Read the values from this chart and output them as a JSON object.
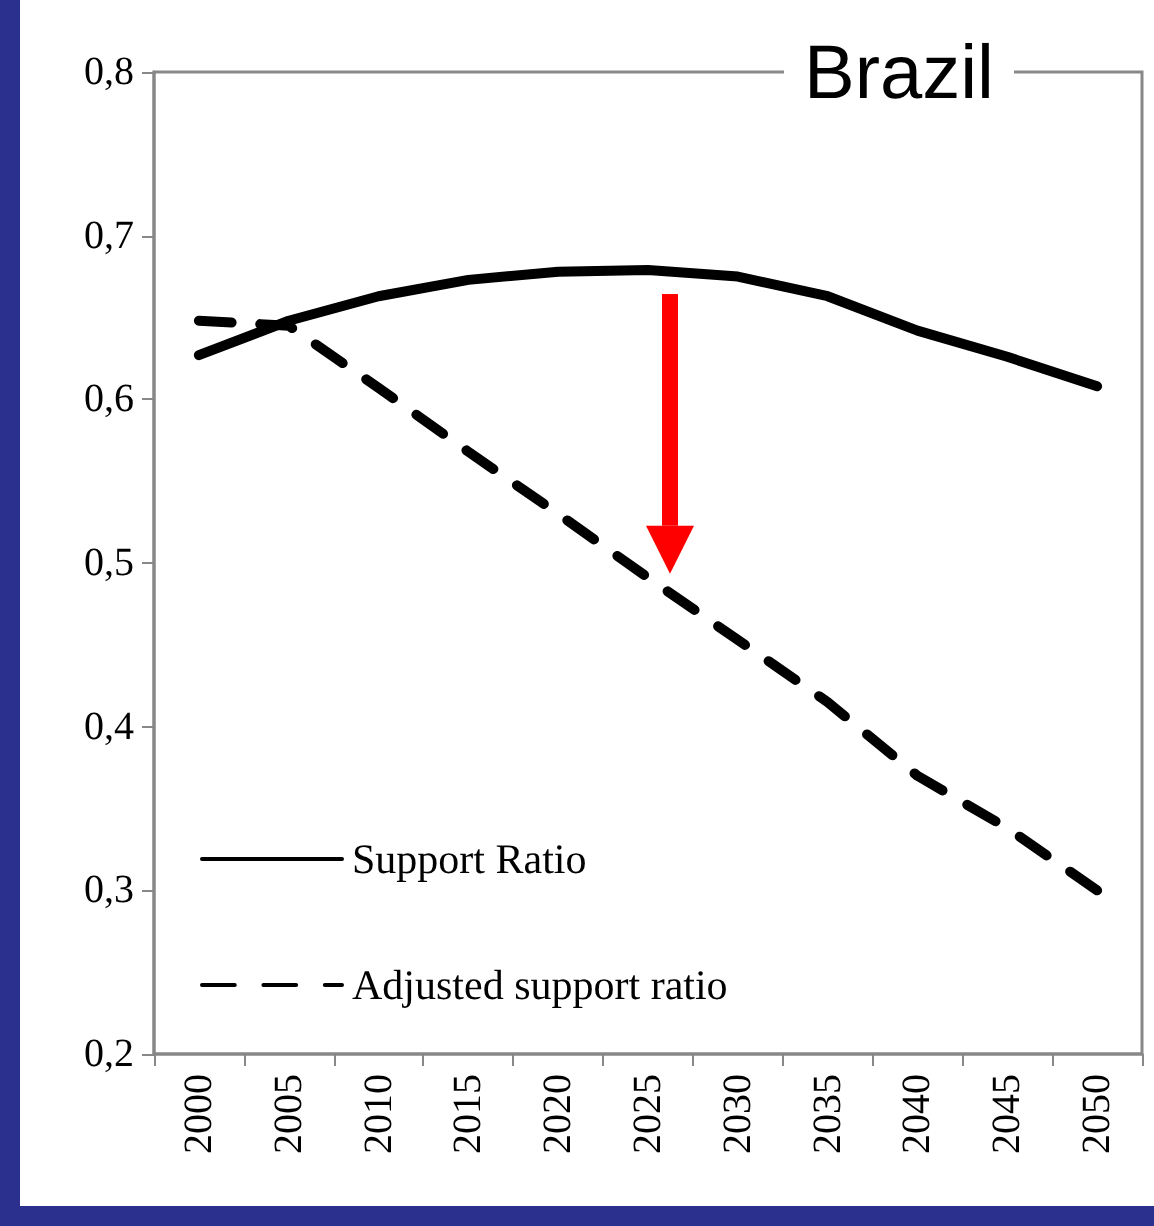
{
  "chart_data": {
    "type": "line",
    "title": "Brazil",
    "categories": [
      "2000",
      "2005",
      "2010",
      "2015",
      "2020",
      "2025",
      "2030",
      "2035",
      "2040",
      "2045",
      "2050"
    ],
    "series": [
      {
        "name": "Support Ratio",
        "color": "#000000",
        "line_style": "solid",
        "values": [
          0.627,
          0.648,
          0.663,
          0.673,
          0.678,
          0.679,
          0.675,
          0.663,
          0.642,
          0.626,
          0.608
        ]
      },
      {
        "name": "Adjusted support ratio",
        "color": "#000000",
        "line_style": "dashed",
        "values": [
          0.648,
          0.645,
          0.607,
          0.568,
          0.53,
          0.491,
          0.453,
          0.415,
          0.37,
          0.338,
          0.3
        ]
      }
    ],
    "ylim": [
      0.2,
      0.8
    ],
    "yticks": [
      {
        "value": 0.2,
        "label": "0,2"
      },
      {
        "value": 0.3,
        "label": "0,3"
      },
      {
        "value": 0.4,
        "label": "0,4"
      },
      {
        "value": 0.5,
        "label": "0,5"
      },
      {
        "value": 0.6,
        "label": "0,6"
      },
      {
        "value": 0.7,
        "label": "0,7"
      },
      {
        "value": 0.8,
        "label": "0,8"
      }
    ],
    "grid": false,
    "legend": "bottom left",
    "marker": "none"
  }
}
